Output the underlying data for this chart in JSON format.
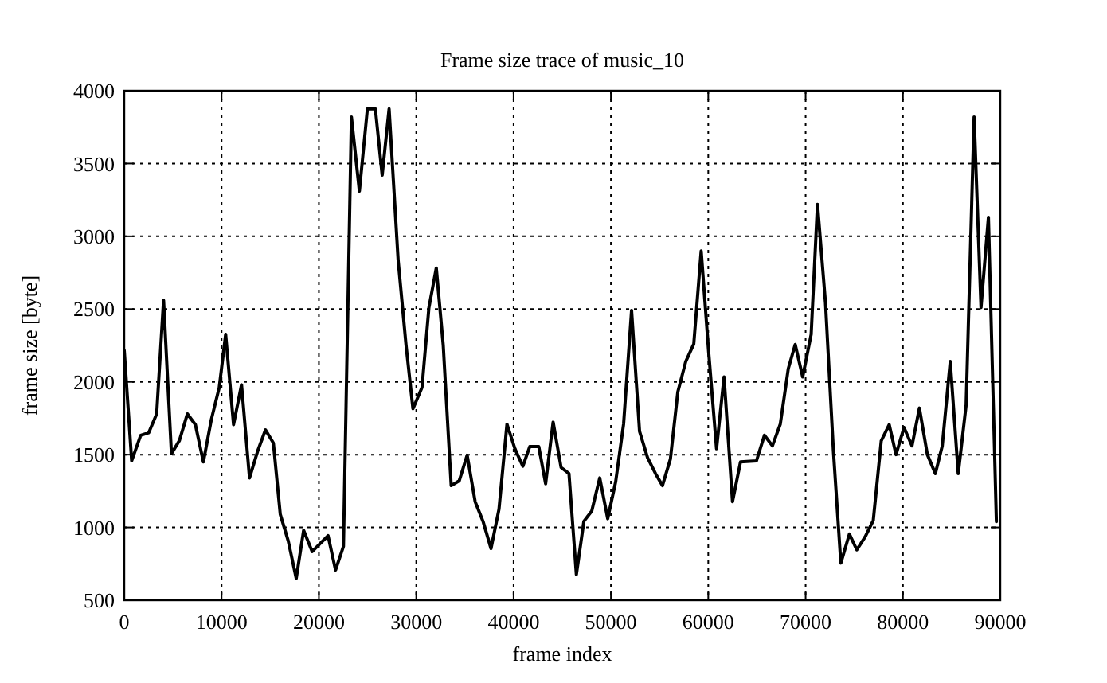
{
  "chart_data": {
    "type": "line",
    "title": "Frame size trace of music_10",
    "xlabel": "frame index",
    "ylabel": "frame size [byte]",
    "xlim": [
      0,
      90000
    ],
    "ylim": [
      500,
      4000
    ],
    "xticks": [
      0,
      10000,
      20000,
      30000,
      40000,
      50000,
      60000,
      70000,
      80000,
      90000
    ],
    "yticks": [
      500,
      1000,
      1500,
      2000,
      2500,
      3000,
      3500,
      4000
    ],
    "grid": true,
    "marker": "none",
    "line_style": "solid",
    "series": [
      {
        "color": "#000000",
        "x": [
          0,
          764,
          1690,
          2510,
          3330,
          4040,
          4850,
          5670,
          6490,
          7310,
          8130,
          8950,
          9760,
          10420,
          11230,
          12050,
          12870,
          13690,
          14510,
          15320,
          16030,
          16850,
          17670,
          18430,
          19310,
          20120,
          20940,
          21710,
          22520,
          23340,
          24160,
          24980,
          25800,
          26500,
          27210,
          28140,
          28950,
          29660,
          30590,
          31300,
          32060,
          32770,
          33590,
          34410,
          35230,
          36050,
          36860,
          37680,
          38500,
          39320,
          40140,
          40950,
          41660,
          42590,
          43290,
          44060,
          44880,
          45690,
          46450,
          47220,
          48030,
          48850,
          49670,
          50490,
          51300,
          52120,
          52940,
          53760,
          54580,
          55290,
          56110,
          56870,
          57690,
          58510,
          59270,
          60040,
          60850,
          61620,
          62490,
          63310,
          64950,
          65770,
          66590,
          67400,
          68220,
          68930,
          69700,
          70570,
          71220,
          72040,
          72860,
          73620,
          74500,
          75260,
          76130,
          76950,
          77770,
          78590,
          79290,
          80110,
          80930,
          81690,
          82510,
          83330,
          84040,
          84860,
          85680,
          86490,
          87310,
          88020,
          88780,
          89600
        ],
        "values": [
          2216,
          1458,
          1633,
          1650,
          1780,
          2560,
          1506,
          1597,
          1780,
          1706,
          1450,
          1742,
          1962,
          2326,
          1706,
          1980,
          1340,
          1521,
          1670,
          1580,
          1090,
          907,
          650,
          980,
          834,
          889,
          943,
          707,
          870,
          3820,
          3310,
          3875,
          3875,
          3420,
          3875,
          2836,
          2253,
          1815,
          1962,
          2509,
          2782,
          2253,
          1287,
          1320,
          1496,
          1177,
          1042,
          855,
          1125,
          1710,
          1540,
          1420,
          1555,
          1555,
          1300,
          1724,
          1412,
          1370,
          676,
          1042,
          1112,
          1340,
          1060,
          1315,
          1710,
          2490,
          1660,
          1480,
          1370,
          1287,
          1470,
          1930,
          2140,
          2260,
          2900,
          2205,
          1540,
          2034,
          1177,
          1450,
          1457,
          1633,
          1560,
          1710,
          2090,
          2257,
          2034,
          2326,
          3220,
          2544,
          1521,
          755,
          955,
          846,
          937,
          1047,
          1594,
          1706,
          1500,
          1687,
          1560,
          1820,
          1500,
          1370,
          1560,
          2140,
          1370,
          1840,
          3820,
          2510,
          3130,
          1040
        ]
      }
    ]
  }
}
